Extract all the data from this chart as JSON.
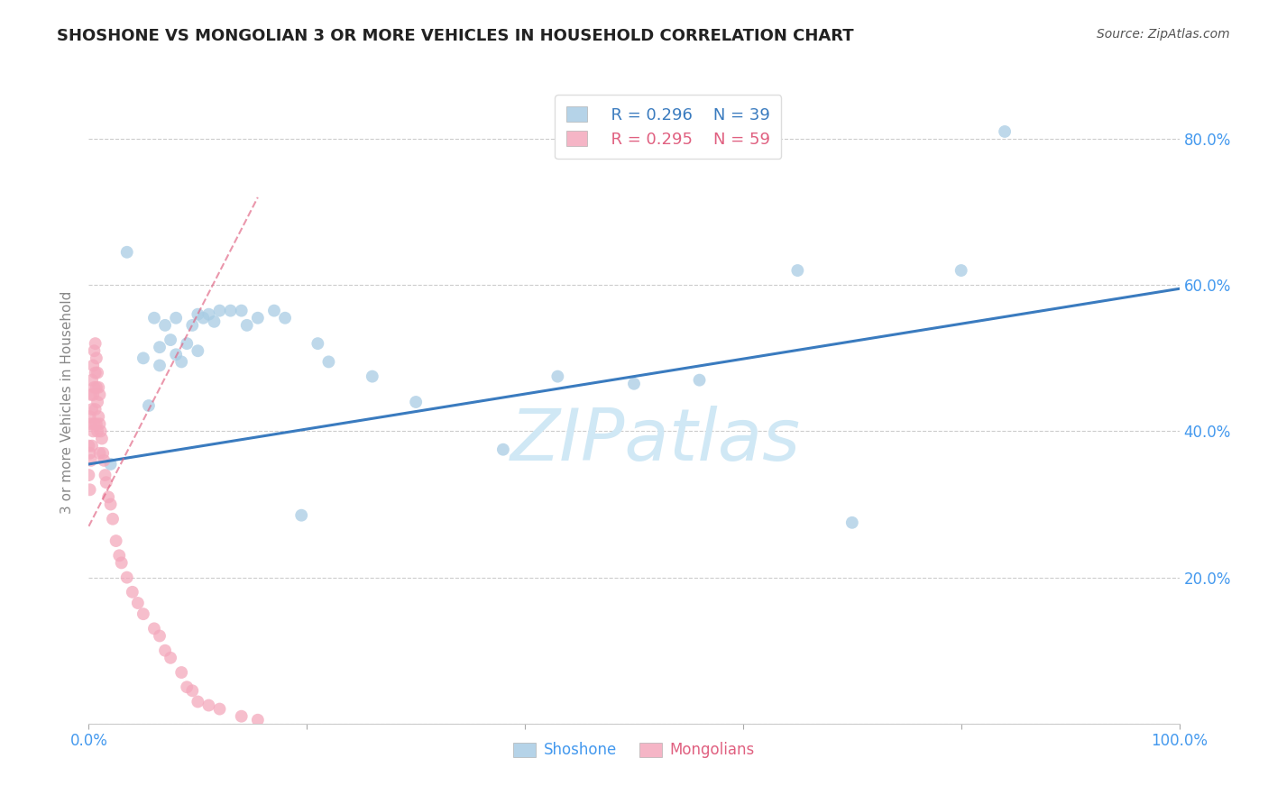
{
  "title": "SHOSHONE VS MONGOLIAN 3 OR MORE VEHICLES IN HOUSEHOLD CORRELATION CHART",
  "source": "Source: ZipAtlas.com",
  "ylabel": "3 or more Vehicles in Household",
  "legend_blue_r": "R = 0.296",
  "legend_blue_n": "N = 39",
  "legend_pink_r": "R = 0.295",
  "legend_pink_n": "N = 59",
  "legend_label_blue": "Shoshone",
  "legend_label_pink": "Mongolians",
  "blue_color": "#a8cce4",
  "pink_color": "#f4a8bc",
  "blue_line_color": "#3a7bbf",
  "pink_line_color": "#e06080",
  "title_color": "#222222",
  "source_color": "#555555",
  "axis_label_color": "#4499ee",
  "ylabel_color": "#888888",
  "grid_color": "#cccccc",
  "background_color": "#ffffff",
  "watermark": "ZIPatlas",
  "watermark_color": "#d0e8f5",
  "shoshone_x": [
    0.02,
    0.035,
    0.05,
    0.055,
    0.06,
    0.065,
    0.065,
    0.07,
    0.075,
    0.08,
    0.08,
    0.085,
    0.09,
    0.095,
    0.1,
    0.1,
    0.105,
    0.11,
    0.115,
    0.12,
    0.13,
    0.14,
    0.145,
    0.155,
    0.17,
    0.18,
    0.195,
    0.21,
    0.22,
    0.26,
    0.3,
    0.38,
    0.43,
    0.5,
    0.56,
    0.65,
    0.7,
    0.8,
    0.84
  ],
  "shoshone_y": [
    0.355,
    0.645,
    0.5,
    0.435,
    0.555,
    0.515,
    0.49,
    0.545,
    0.525,
    0.555,
    0.505,
    0.495,
    0.52,
    0.545,
    0.56,
    0.51,
    0.555,
    0.56,
    0.55,
    0.565,
    0.565,
    0.565,
    0.545,
    0.555,
    0.565,
    0.555,
    0.285,
    0.52,
    0.495,
    0.475,
    0.44,
    0.375,
    0.475,
    0.465,
    0.47,
    0.62,
    0.275,
    0.62,
    0.81
  ],
  "mongolian_x": [
    0.0,
    0.0,
    0.001,
    0.001,
    0.001,
    0.002,
    0.002,
    0.002,
    0.003,
    0.003,
    0.003,
    0.004,
    0.004,
    0.004,
    0.005,
    0.005,
    0.005,
    0.006,
    0.006,
    0.006,
    0.007,
    0.007,
    0.007,
    0.008,
    0.008,
    0.008,
    0.009,
    0.009,
    0.01,
    0.01,
    0.01,
    0.011,
    0.012,
    0.013,
    0.014,
    0.015,
    0.016,
    0.018,
    0.02,
    0.022,
    0.025,
    0.028,
    0.03,
    0.035,
    0.04,
    0.045,
    0.05,
    0.06,
    0.065,
    0.07,
    0.075,
    0.085,
    0.09,
    0.095,
    0.1,
    0.11,
    0.12,
    0.14,
    0.155
  ],
  "mongolian_y": [
    0.38,
    0.34,
    0.42,
    0.37,
    0.32,
    0.45,
    0.41,
    0.36,
    0.47,
    0.43,
    0.38,
    0.49,
    0.45,
    0.4,
    0.51,
    0.46,
    0.41,
    0.52,
    0.48,
    0.43,
    0.5,
    0.46,
    0.41,
    0.48,
    0.44,
    0.4,
    0.46,
    0.42,
    0.45,
    0.41,
    0.37,
    0.4,
    0.39,
    0.37,
    0.36,
    0.34,
    0.33,
    0.31,
    0.3,
    0.28,
    0.25,
    0.23,
    0.22,
    0.2,
    0.18,
    0.165,
    0.15,
    0.13,
    0.12,
    0.1,
    0.09,
    0.07,
    0.05,
    0.045,
    0.03,
    0.025,
    0.02,
    0.01,
    0.005
  ],
  "blue_line_x": [
    0.0,
    1.0
  ],
  "blue_line_y": [
    0.355,
    0.595
  ],
  "pink_line_x": [
    0.0,
    0.155
  ],
  "pink_line_y": [
    0.27,
    0.72
  ],
  "xlim": [
    0.0,
    1.0
  ],
  "ylim": [
    0.0,
    0.88
  ],
  "xticks": [
    0.0,
    0.2,
    0.4,
    0.6,
    0.8,
    1.0
  ],
  "xticklabels": [
    "0.0%",
    "",
    "",
    "",
    "",
    "100.0%"
  ],
  "yticks": [
    0.0,
    0.2,
    0.4,
    0.6,
    0.8
  ],
  "yticklabels_right": [
    "",
    "20.0%",
    "40.0%",
    "60.0%",
    "80.0%"
  ]
}
